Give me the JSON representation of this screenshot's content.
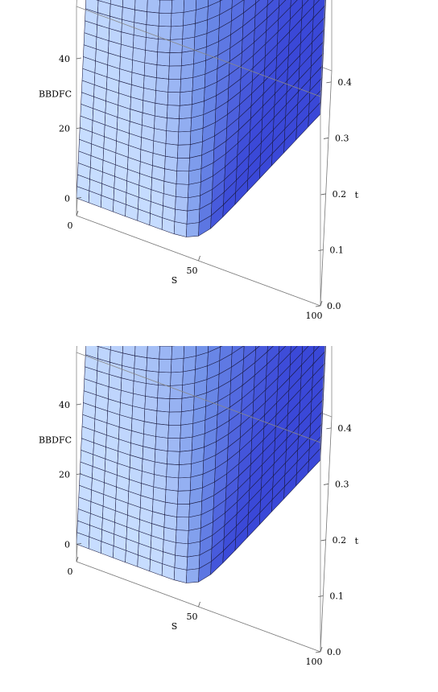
{
  "chart_data": [
    {
      "type": "surface3d",
      "zlabel": "BBDFC",
      "xlabel": "S",
      "ylabel": "t",
      "x_ticks": [
        0,
        50,
        100
      ],
      "y_ticks": [
        0.0,
        0.1,
        0.2,
        0.3,
        0.4
      ],
      "z_ticks": [
        0,
        20,
        40
      ],
      "x_tick_labels": [
        "0",
        "50",
        "100"
      ],
      "y_tick_labels": [
        "0.0",
        "0.1",
        "0.2",
        "0.3",
        "0.4"
      ],
      "z_tick_labels": [
        "0",
        "20",
        "40"
      ],
      "xlim": [
        0,
        100
      ],
      "ylim": [
        0,
        0.42
      ],
      "zlim": [
        -5,
        55
      ],
      "strike": 50,
      "z_at_S100_t0": 50,
      "z_at_S100_t042": 52,
      "z_at_S0": 0,
      "grid_lines": 20,
      "surface_color": "#6f8fe8",
      "surface_light": "#c7ddff",
      "surface_dark": "#3a48d8"
    },
    {
      "type": "surface3d",
      "zlabel": "BBDFC",
      "xlabel": "S",
      "ylabel": "t",
      "x_ticks": [
        0,
        50,
        100
      ],
      "y_ticks": [
        0.0,
        0.1,
        0.2,
        0.3,
        0.4
      ],
      "z_ticks": [
        0,
        20,
        40
      ],
      "x_tick_labels": [
        "0",
        "50",
        "100"
      ],
      "y_tick_labels": [
        "0.0",
        "0.1",
        "0.2",
        "0.3",
        "0.4"
      ],
      "z_tick_labels": [
        "0",
        "20",
        "40"
      ],
      "xlim": [
        0,
        100
      ],
      "ylim": [
        0,
        0.42
      ],
      "zlim": [
        -5,
        55
      ],
      "strike": 50,
      "z_at_S100_t0": 50,
      "z_at_S100_t042": 52,
      "z_at_S0": 0,
      "grid_lines": 20,
      "surface_color": "#6f8fe8",
      "surface_light": "#c7ddff",
      "surface_dark": "#3a48d8"
    }
  ]
}
